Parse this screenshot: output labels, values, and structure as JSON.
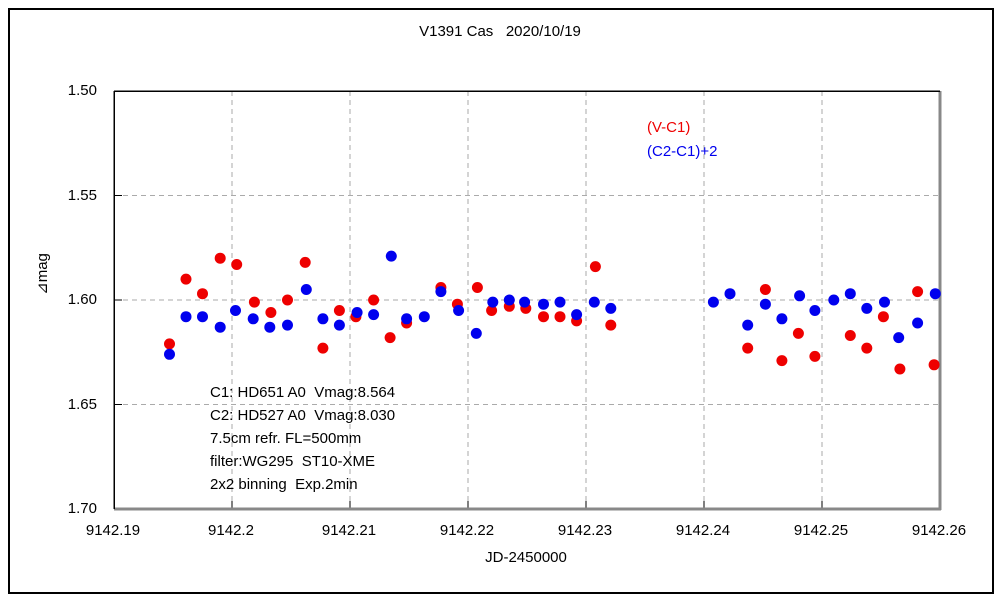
{
  "colors": {
    "series_red": "#ee0000",
    "series_blue": "#0000ee",
    "grid": "#aaaaaa",
    "frame_dark": "#000000",
    "frame_shadow": "#888888",
    "text": "#000000",
    "background": "#ffffff"
  },
  "chart_data": {
    "type": "scatter",
    "title": "V1391 Cas   2020/10/19",
    "xlabel": "JD-2450000",
    "ylabel": "⧿mag",
    "ylabel_display": "⊿mag",
    "xlim": [
      9142.19,
      9142.26
    ],
    "ylim": [
      1.5,
      1.7
    ],
    "y_axis_inverted_magnitude_scale": "1.50 at top, 1.70 at bottom",
    "grid": "dashed gray lines at interior ticks",
    "legend_position": "upper right inside plot",
    "x_ticks": [
      "9142.19",
      "9142.2",
      "9142.21",
      "9142.22",
      "9142.23",
      "9142.24",
      "9142.25",
      "9142.26"
    ],
    "y_ticks": [
      "1.50",
      "1.55",
      "1.60",
      "1.65",
      "1.70"
    ],
    "legend": [
      {
        "label": "(V-C1)",
        "color": "#ee0000"
      },
      {
        "label": "(C2-C1)+2",
        "color": "#0000ee"
      }
    ],
    "series": [
      {
        "name": "(V-C1)",
        "color": "#ee0000",
        "marker": "filled-circle",
        "points": [
          [
            9142.1947,
            1.621
          ],
          [
            9142.1961,
            1.59
          ],
          [
            9142.1975,
            1.597
          ],
          [
            9142.199,
            1.58
          ],
          [
            9142.2004,
            1.583
          ],
          [
            9142.2019,
            1.601
          ],
          [
            9142.2033,
            1.606
          ],
          [
            9142.2047,
            1.6
          ],
          [
            9142.2062,
            1.582
          ],
          [
            9142.2077,
            1.623
          ],
          [
            9142.2091,
            1.605
          ],
          [
            9142.2105,
            1.608
          ],
          [
            9142.212,
            1.6
          ],
          [
            9142.2134,
            1.618
          ],
          [
            9142.2148,
            1.611
          ],
          [
            9142.2177,
            1.594
          ],
          [
            9142.2191,
            1.602
          ],
          [
            9142.2208,
            1.594
          ],
          [
            9142.222,
            1.605
          ],
          [
            9142.2235,
            1.603
          ],
          [
            9142.2249,
            1.604
          ],
          [
            9142.2264,
            1.608
          ],
          [
            9142.2278,
            1.608
          ],
          [
            9142.2292,
            1.61
          ],
          [
            9142.2308,
            1.584
          ],
          [
            9142.2321,
            1.612
          ],
          [
            9142.2437,
            1.623
          ],
          [
            9142.2452,
            1.595
          ],
          [
            9142.2466,
            1.629
          ],
          [
            9142.248,
            1.616
          ],
          [
            9142.2494,
            1.627
          ],
          [
            9142.2524,
            1.617
          ],
          [
            9142.2538,
            1.623
          ],
          [
            9142.2552,
            1.608
          ],
          [
            9142.2566,
            1.633
          ],
          [
            9142.2581,
            1.596
          ],
          [
            9142.2595,
            1.631
          ]
        ]
      },
      {
        "name": "(C2-C1)+2",
        "color": "#0000ee",
        "marker": "filled-circle",
        "points": [
          [
            9142.1947,
            1.626
          ],
          [
            9142.1961,
            1.608
          ],
          [
            9142.1975,
            1.608
          ],
          [
            9142.199,
            1.613
          ],
          [
            9142.2003,
            1.605
          ],
          [
            9142.2018,
            1.609
          ],
          [
            9142.2032,
            1.613
          ],
          [
            9142.2047,
            1.612
          ],
          [
            9142.2063,
            1.595
          ],
          [
            9142.2077,
            1.609
          ],
          [
            9142.2091,
            1.612
          ],
          [
            9142.2106,
            1.606
          ],
          [
            9142.212,
            1.607
          ],
          [
            9142.2135,
            1.579
          ],
          [
            9142.2148,
            1.609
          ],
          [
            9142.2163,
            1.608
          ],
          [
            9142.2177,
            1.596
          ],
          [
            9142.2192,
            1.605
          ],
          [
            9142.2207,
            1.616
          ],
          [
            9142.2221,
            1.601
          ],
          [
            9142.2235,
            1.6
          ],
          [
            9142.2248,
            1.601
          ],
          [
            9142.2264,
            1.602
          ],
          [
            9142.2278,
            1.601
          ],
          [
            9142.2292,
            1.607
          ],
          [
            9142.2307,
            1.601
          ],
          [
            9142.2321,
            1.604
          ],
          [
            9142.2408,
            1.601
          ],
          [
            9142.2422,
            1.597
          ],
          [
            9142.2437,
            1.612
          ],
          [
            9142.2452,
            1.602
          ],
          [
            9142.2466,
            1.609
          ],
          [
            9142.2481,
            1.598
          ],
          [
            9142.2494,
            1.605
          ],
          [
            9142.251,
            1.6
          ],
          [
            9142.2524,
            1.597
          ],
          [
            9142.2538,
            1.604
          ],
          [
            9142.2553,
            1.601
          ],
          [
            9142.2565,
            1.618
          ],
          [
            9142.2581,
            1.611
          ],
          [
            9142.2596,
            1.597
          ]
        ]
      }
    ],
    "annotation_lines": [
      "C1: HD651 A0  Vmag:8.564",
      "C2: HD527 A0  Vmag:8.030",
      "7.5cm refr. FL=500mm",
      "filter:WG295  ST10-XME",
      "2x2 binning  Exp.2min"
    ]
  }
}
